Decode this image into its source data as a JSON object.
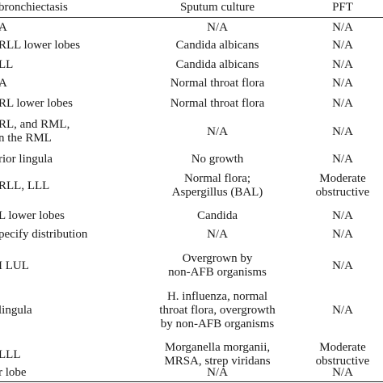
{
  "table": {
    "headers": [
      "bronchiectasis",
      "Sputum culture",
      "PFT"
    ],
    "rows": [
      {
        "col1": [
          "A"
        ],
        "col2": [
          "N/A"
        ],
        "col3": [
          "N/A"
        ]
      },
      {
        "col1": [
          "RLL lower lobes"
        ],
        "col2": [
          "Candida albicans"
        ],
        "col3": [
          "N/A"
        ]
      },
      {
        "col1": [
          "LL"
        ],
        "col2": [
          "Candida albicans"
        ],
        "col3": [
          "N/A"
        ]
      },
      {
        "col1": [
          "A"
        ],
        "col2": [
          "Normal throat flora"
        ],
        "col3": [
          "N/A"
        ]
      },
      {
        "col1": [
          "RL lower lobes"
        ],
        "col2": [
          "Normal throat flora"
        ],
        "col3": [
          "N/A"
        ]
      },
      {
        "col1": [
          "RL, and RML,",
          "n the RML"
        ],
        "col2": [
          "N/A"
        ],
        "col3": [
          "N/A"
        ]
      },
      {
        "col1": [
          "rior lingula"
        ],
        "col2": [
          "No growth"
        ],
        "col3": [
          "N/A"
        ]
      },
      {
        "col1": [
          "RLL, LLL"
        ],
        "col2": [
          "Normal flora;",
          "Aspergillus (BAL)"
        ],
        "col3": [
          "Moderate",
          "obstructive"
        ]
      },
      {
        "col1": [
          "L lower lobes"
        ],
        "col2": [
          "Candida"
        ],
        "col3": [
          "N/A"
        ]
      },
      {
        "col1": [
          "pecify distribution"
        ],
        "col2": [
          "N/A"
        ],
        "col3": [
          "N/A"
        ]
      },
      {
        "col1": [
          "I LUL"
        ],
        "col2": [
          "Overgrown by",
          "non-AFB organisms"
        ],
        "col3": [
          "N/A"
        ]
      },
      {
        "col1": [
          "lingula"
        ],
        "col2": [
          "H. influenza, normal",
          "throat flora, overgrowth",
          "by non-AFB organisms"
        ],
        "col3": [
          "N/A"
        ]
      },
      {
        "col1": [
          "LLL"
        ],
        "col2": [
          "Morganella morganii,",
          "MRSA, strep viridans"
        ],
        "col3": [
          "Moderate",
          "obstructive"
        ]
      },
      {
        "col1": [
          "r lobe"
        ],
        "col2": [
          "N/A"
        ],
        "col3": [
          "N/A"
        ]
      }
    ]
  }
}
